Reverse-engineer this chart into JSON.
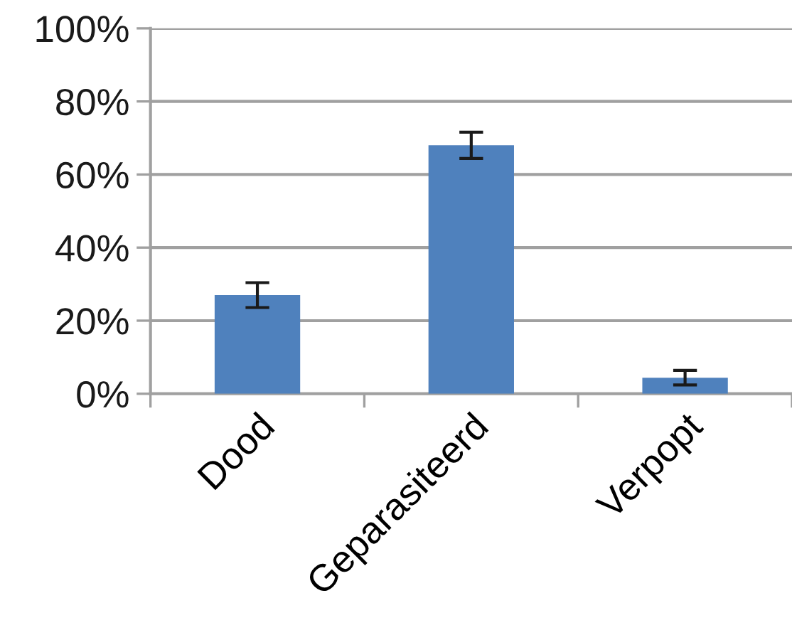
{
  "chart_data": {
    "type": "bar",
    "categories": [
      "Dood",
      "Geparasiteerd",
      "Verpopt"
    ],
    "values": [
      27,
      68,
      4.4
    ],
    "errors": [
      3.4,
      3.6,
      2
    ],
    "color": "#4f81bd",
    "ylim": [
      0,
      100
    ],
    "yticks": [
      {
        "value": 0,
        "label": "0%"
      },
      {
        "value": 20,
        "label": "20%"
      },
      {
        "value": 40,
        "label": "40%"
      },
      {
        "value": 60,
        "label": "60%"
      },
      {
        "value": 80,
        "label": "80%"
      },
      {
        "value": 100,
        "label": "100%"
      }
    ],
    "grid": "y"
  }
}
